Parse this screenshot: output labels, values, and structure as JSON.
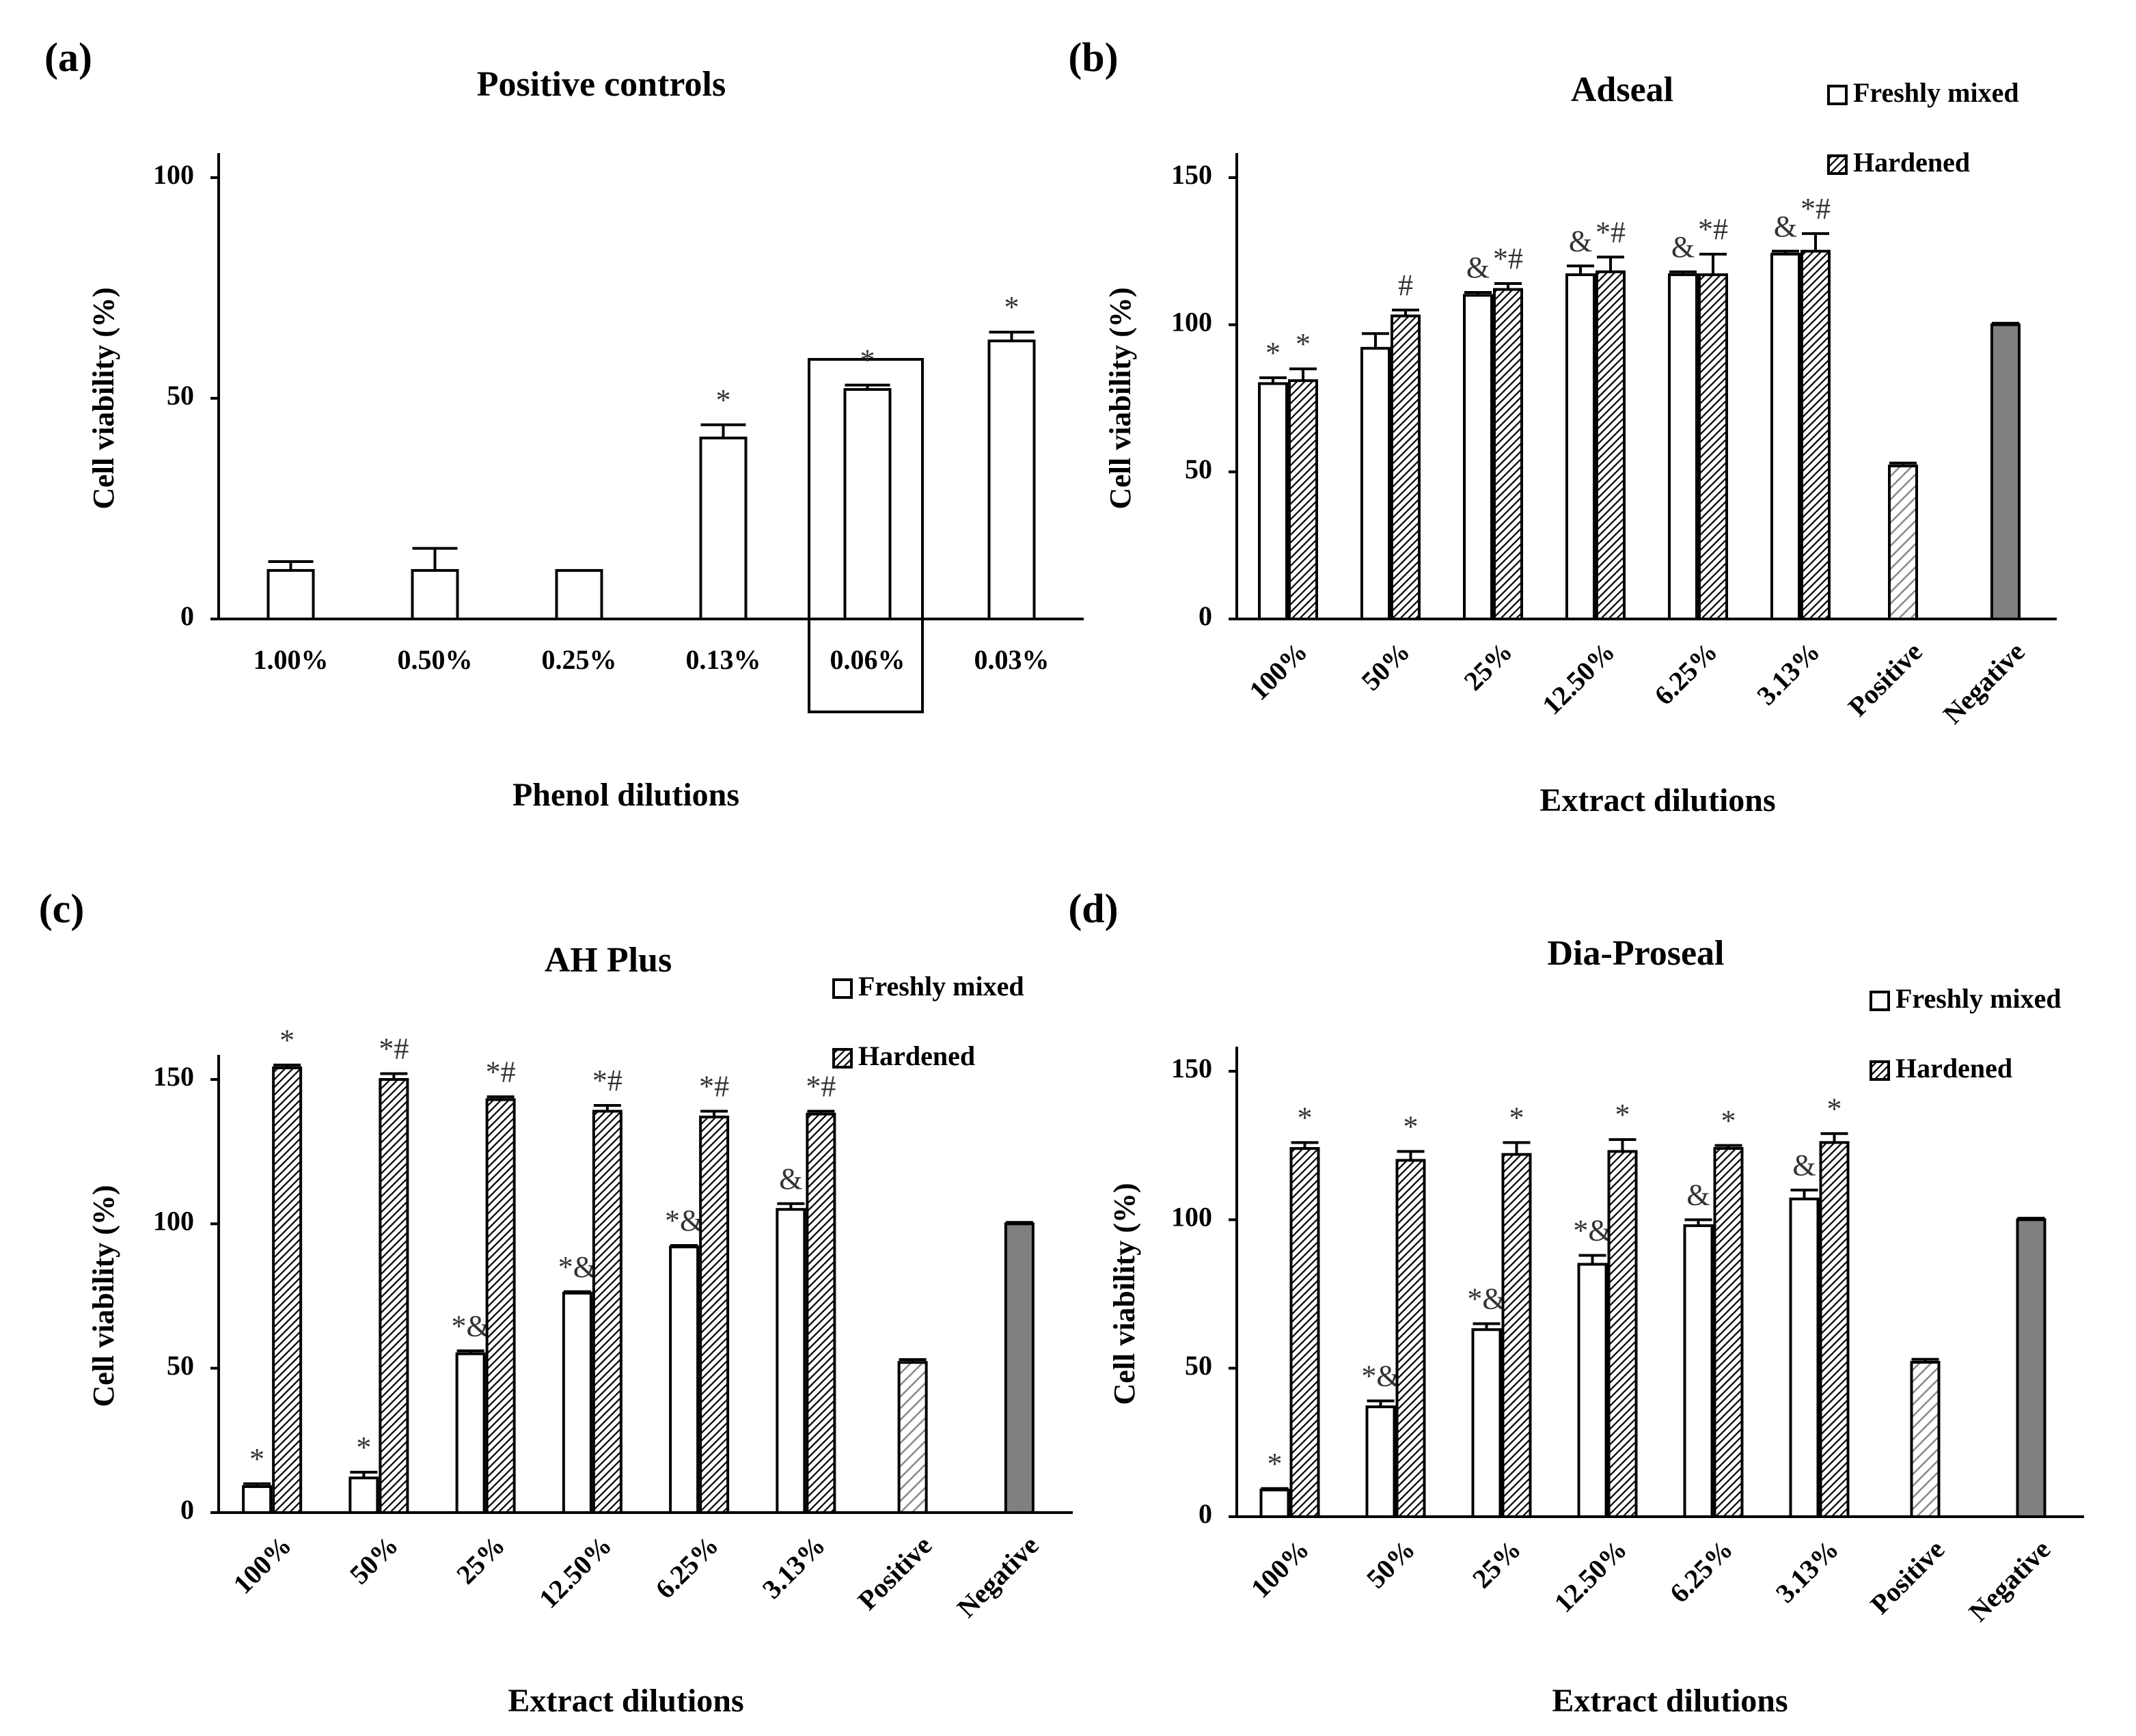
{
  "chart_data": [
    {
      "type": "bar",
      "panel": "(a)",
      "title": "Positive controls",
      "xlabel": "Phenol dilutions",
      "ylabel": "Cell viability (%)",
      "categories": [
        "1.00%",
        "0.50%",
        "0.25%",
        "0.13%",
        "0.06%",
        "0.03%"
      ],
      "values": [
        11,
        11,
        11,
        41,
        52,
        63
      ],
      "errors": [
        2,
        5,
        0,
        3,
        1,
        2
      ],
      "annotations": [
        null,
        null,
        null,
        "*",
        "*",
        "*"
      ],
      "color": "#ffffff",
      "ylim": [
        0,
        100
      ],
      "yticks": [
        0,
        50,
        100
      ]
    },
    {
      "type": "bar",
      "panel": "(b)",
      "title": "Adseal",
      "xlabel": "Extract dilutions",
      "ylabel": "Cell viability (%)",
      "xtick_rotation": 45,
      "categories": [
        "100%",
        "50%",
        "25%",
        "12.50%",
        "6.25%",
        "3.13%",
        "Positive",
        "Negative"
      ],
      "series": [
        {
          "name": "Freshly mixed",
          "color": "#ffffff",
          "values": [
            80,
            92,
            110,
            117,
            117,
            124,
            null,
            null
          ],
          "errors": [
            2,
            5,
            1,
            3,
            1,
            1,
            null,
            null
          ],
          "annotations": [
            "*",
            null,
            "&",
            "&",
            "&",
            "&",
            null,
            null
          ]
        },
        {
          "name": "Hardened",
          "color": "#000000",
          "pattern": "diagonal",
          "values": [
            81,
            103,
            112,
            118,
            117,
            125,
            null,
            null
          ],
          "errors": [
            4,
            2,
            2,
            5,
            7,
            6,
            null,
            null
          ],
          "annotations": [
            "*",
            "#",
            "*#",
            "*#",
            "*#",
            "*#",
            null,
            null
          ]
        }
      ],
      "controls": {
        "values": [
          null,
          null,
          null,
          null,
          null,
          null,
          52,
          100
        ],
        "errors": [
          null,
          null,
          null,
          null,
          null,
          null,
          1,
          0.5
        ],
        "colors": [
          null,
          null,
          null,
          null,
          null,
          null,
          "#888888",
          "#808080"
        ],
        "patterns": [
          null,
          null,
          null,
          null,
          null,
          null,
          "diagonal",
          null
        ]
      },
      "ylim": [
        0,
        150
      ],
      "yticks": [
        0,
        50,
        100,
        150
      ]
    },
    {
      "type": "bar",
      "panel": "(c)",
      "title": "AH Plus",
      "xlabel": "Extract dilutions",
      "ylabel": "Cell viability (%)",
      "xtick_rotation": 45,
      "categories": [
        "100%",
        "50%",
        "25%",
        "12.50%",
        "6.25%",
        "3.13%",
        "Positive",
        "Negative"
      ],
      "series": [
        {
          "name": "Freshly mixed",
          "color": "#ffffff",
          "values": [
            9,
            12,
            55,
            76,
            92,
            105,
            null,
            null
          ],
          "errors": [
            1,
            2,
            1,
            0.5,
            0.5,
            2,
            null,
            null
          ],
          "annotations": [
            "*",
            "*",
            "*&",
            "*&",
            "*&",
            "&",
            null,
            null
          ]
        },
        {
          "name": "Hardened",
          "color": "#000000",
          "pattern": "diagonal",
          "values": [
            154,
            150,
            143,
            139,
            137,
            138,
            null,
            null
          ],
          "errors": [
            1,
            2,
            1,
            2,
            2,
            1,
            null,
            null
          ],
          "annotations": [
            "*",
            "*#",
            "*#",
            "*#",
            "*#",
            "*#",
            null,
            null
          ]
        }
      ],
      "controls": {
        "values": [
          null,
          null,
          null,
          null,
          null,
          null,
          52,
          100
        ],
        "errors": [
          null,
          null,
          null,
          null,
          null,
          null,
          1,
          0.5
        ],
        "colors": [
          null,
          null,
          null,
          null,
          null,
          null,
          "#888888",
          "#808080"
        ],
        "patterns": [
          null,
          null,
          null,
          null,
          null,
          null,
          "diagonal",
          null
        ]
      },
      "ylim": [
        0,
        150
      ],
      "yticks": [
        0,
        50,
        100,
        150
      ]
    },
    {
      "type": "bar",
      "panel": "(d)",
      "title": "Dia-Proseal",
      "xlabel": "Extract dilutions",
      "ylabel": "Cell viability (%)",
      "xtick_rotation": 45,
      "categories": [
        "100%",
        "50%",
        "25%",
        "12.50%",
        "6.25%",
        "3.13%",
        "Positive",
        "Negative"
      ],
      "series": [
        {
          "name": "Freshly mixed",
          "color": "#ffffff",
          "values": [
            9,
            37,
            63,
            85,
            98,
            107,
            null,
            null
          ],
          "errors": [
            0.5,
            2,
            2,
            3,
            2,
            3,
            null,
            null
          ],
          "annotations": [
            "*",
            "*&",
            "*&",
            "*&",
            "&",
            "&",
            null,
            null
          ]
        },
        {
          "name": "Hardened",
          "color": "#000000",
          "pattern": "diagonal",
          "values": [
            124,
            120,
            122,
            123,
            124,
            126,
            null,
            null
          ],
          "errors": [
            2,
            3,
            4,
            4,
            1,
            3,
            null,
            null
          ],
          "annotations": [
            "*",
            "*",
            "*",
            "*",
            "*",
            "*",
            null,
            null
          ]
        }
      ],
      "controls": {
        "values": [
          null,
          null,
          null,
          null,
          null,
          null,
          52,
          100
        ],
        "errors": [
          null,
          null,
          null,
          null,
          null,
          null,
          1,
          0.5
        ],
        "colors": [
          null,
          null,
          null,
          null,
          null,
          null,
          "#888888",
          "#808080"
        ],
        "patterns": [
          null,
          null,
          null,
          null,
          null,
          null,
          "diagonal",
          null
        ]
      },
      "ylim": [
        0,
        150
      ],
      "yticks": [
        0,
        50,
        100,
        150
      ]
    }
  ]
}
